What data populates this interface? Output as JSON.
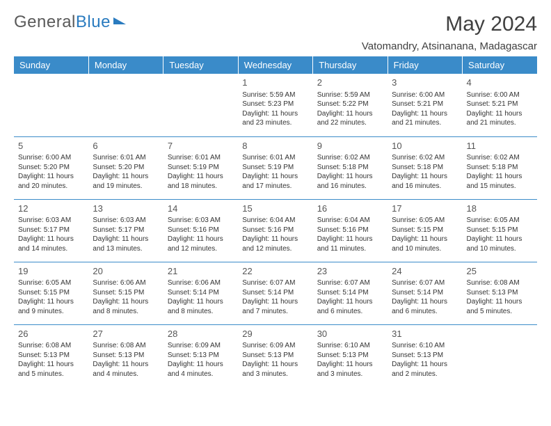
{
  "logo": {
    "text1": "General",
    "text2": "Blue"
  },
  "title": "May 2024",
  "location": "Vatomandry, Atsinanana, Madagascar",
  "day_headers": [
    "Sunday",
    "Monday",
    "Tuesday",
    "Wednesday",
    "Thursday",
    "Friday",
    "Saturday"
  ],
  "header_bg": "#3a8bc9",
  "header_fg": "#ffffff",
  "border_color": "#3a8bc9",
  "text_color": "#333333",
  "weeks": [
    [
      null,
      null,
      null,
      {
        "n": "1",
        "sr": "5:59 AM",
        "ss": "5:23 PM",
        "dl": "11 hours and 23 minutes."
      },
      {
        "n": "2",
        "sr": "5:59 AM",
        "ss": "5:22 PM",
        "dl": "11 hours and 22 minutes."
      },
      {
        "n": "3",
        "sr": "6:00 AM",
        "ss": "5:21 PM",
        "dl": "11 hours and 21 minutes."
      },
      {
        "n": "4",
        "sr": "6:00 AM",
        "ss": "5:21 PM",
        "dl": "11 hours and 21 minutes."
      }
    ],
    [
      {
        "n": "5",
        "sr": "6:00 AM",
        "ss": "5:20 PM",
        "dl": "11 hours and 20 minutes."
      },
      {
        "n": "6",
        "sr": "6:01 AM",
        "ss": "5:20 PM",
        "dl": "11 hours and 19 minutes."
      },
      {
        "n": "7",
        "sr": "6:01 AM",
        "ss": "5:19 PM",
        "dl": "11 hours and 18 minutes."
      },
      {
        "n": "8",
        "sr": "6:01 AM",
        "ss": "5:19 PM",
        "dl": "11 hours and 17 minutes."
      },
      {
        "n": "9",
        "sr": "6:02 AM",
        "ss": "5:18 PM",
        "dl": "11 hours and 16 minutes."
      },
      {
        "n": "10",
        "sr": "6:02 AM",
        "ss": "5:18 PM",
        "dl": "11 hours and 16 minutes."
      },
      {
        "n": "11",
        "sr": "6:02 AM",
        "ss": "5:18 PM",
        "dl": "11 hours and 15 minutes."
      }
    ],
    [
      {
        "n": "12",
        "sr": "6:03 AM",
        "ss": "5:17 PM",
        "dl": "11 hours and 14 minutes."
      },
      {
        "n": "13",
        "sr": "6:03 AM",
        "ss": "5:17 PM",
        "dl": "11 hours and 13 minutes."
      },
      {
        "n": "14",
        "sr": "6:03 AM",
        "ss": "5:16 PM",
        "dl": "11 hours and 12 minutes."
      },
      {
        "n": "15",
        "sr": "6:04 AM",
        "ss": "5:16 PM",
        "dl": "11 hours and 12 minutes."
      },
      {
        "n": "16",
        "sr": "6:04 AM",
        "ss": "5:16 PM",
        "dl": "11 hours and 11 minutes."
      },
      {
        "n": "17",
        "sr": "6:05 AM",
        "ss": "5:15 PM",
        "dl": "11 hours and 10 minutes."
      },
      {
        "n": "18",
        "sr": "6:05 AM",
        "ss": "5:15 PM",
        "dl": "11 hours and 10 minutes."
      }
    ],
    [
      {
        "n": "19",
        "sr": "6:05 AM",
        "ss": "5:15 PM",
        "dl": "11 hours and 9 minutes."
      },
      {
        "n": "20",
        "sr": "6:06 AM",
        "ss": "5:15 PM",
        "dl": "11 hours and 8 minutes."
      },
      {
        "n": "21",
        "sr": "6:06 AM",
        "ss": "5:14 PM",
        "dl": "11 hours and 8 minutes."
      },
      {
        "n": "22",
        "sr": "6:07 AM",
        "ss": "5:14 PM",
        "dl": "11 hours and 7 minutes."
      },
      {
        "n": "23",
        "sr": "6:07 AM",
        "ss": "5:14 PM",
        "dl": "11 hours and 6 minutes."
      },
      {
        "n": "24",
        "sr": "6:07 AM",
        "ss": "5:14 PM",
        "dl": "11 hours and 6 minutes."
      },
      {
        "n": "25",
        "sr": "6:08 AM",
        "ss": "5:13 PM",
        "dl": "11 hours and 5 minutes."
      }
    ],
    [
      {
        "n": "26",
        "sr": "6:08 AM",
        "ss": "5:13 PM",
        "dl": "11 hours and 5 minutes."
      },
      {
        "n": "27",
        "sr": "6:08 AM",
        "ss": "5:13 PM",
        "dl": "11 hours and 4 minutes."
      },
      {
        "n": "28",
        "sr": "6:09 AM",
        "ss": "5:13 PM",
        "dl": "11 hours and 4 minutes."
      },
      {
        "n": "29",
        "sr": "6:09 AM",
        "ss": "5:13 PM",
        "dl": "11 hours and 3 minutes."
      },
      {
        "n": "30",
        "sr": "6:10 AM",
        "ss": "5:13 PM",
        "dl": "11 hours and 3 minutes."
      },
      {
        "n": "31",
        "sr": "6:10 AM",
        "ss": "5:13 PM",
        "dl": "11 hours and 2 minutes."
      },
      null
    ]
  ],
  "labels": {
    "sunrise": "Sunrise: ",
    "sunset": "Sunset: ",
    "daylight": "Daylight: "
  }
}
